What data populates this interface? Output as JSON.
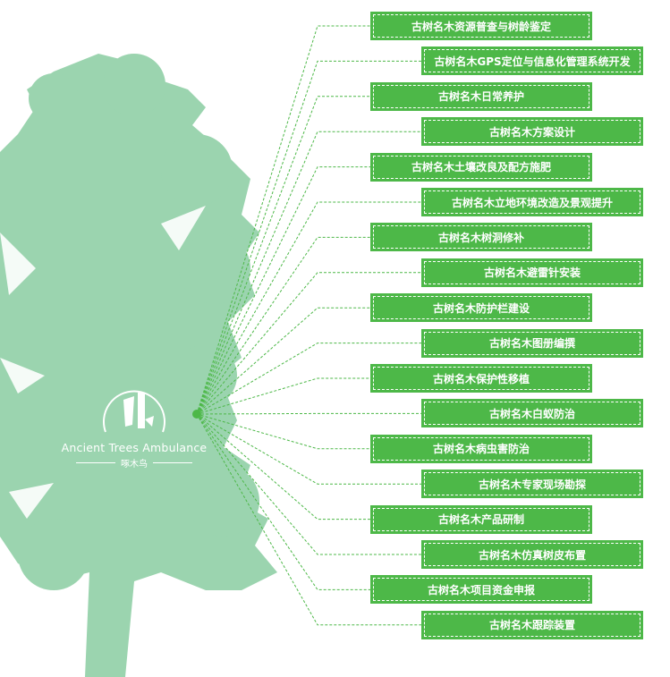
{
  "logo": {
    "name_en": "Ancient Trees Ambulance",
    "name_cn": "啄木鸟"
  },
  "colors": {
    "tree": "#9bd4af",
    "box": "#4db848",
    "connector": "#4db848"
  },
  "items": [
    "古树名木资源普查与树龄鉴定",
    "古树名木GPS定位与信息化管理系统开发",
    "古树名木日常养护",
    "古树名木方案设计",
    "古树名木土壤改良及配方施肥",
    "古树名木立地环境改造及景观提升",
    "古树名木树洞修补",
    "古树名木避雷针安装",
    "古树名木防护栏建设",
    "古树名木图册编撰",
    "古树名木保护性移植",
    "古树名木白蚁防治",
    "古树名木病虫害防治",
    "古树名木专家现场勘探",
    "古树名木产品研制",
    "古树名木仿真树皮布置",
    "古树名木项目资金申报",
    "古树名木跟踪装置"
  ]
}
